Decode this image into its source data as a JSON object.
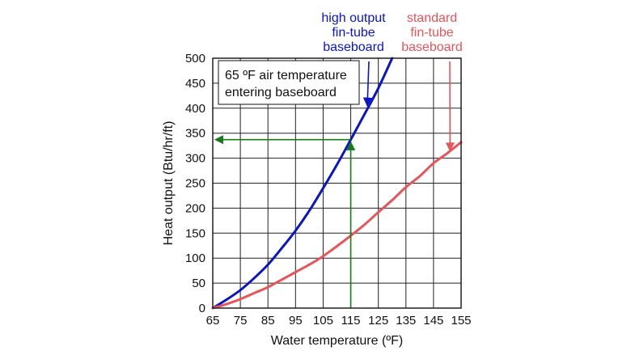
{
  "chart_data": {
    "type": "line",
    "title": "",
    "xlabel": "Water temperature (ºF)",
    "ylabel": "Heat output (Btu/hr/ft)",
    "xlim": [
      65,
      155
    ],
    "ylim": [
      0,
      500
    ],
    "x_ticks": [
      "65",
      "75",
      "85",
      "95",
      "105",
      "115",
      "125",
      "135",
      "145",
      "155"
    ],
    "y_ticks": [
      "0",
      "50",
      "100",
      "150",
      "200",
      "250",
      "300",
      "350",
      "400",
      "450",
      "500"
    ],
    "grid": true,
    "legend": "none",
    "colors": {
      "high_output": "#0a14c8",
      "standard": "#e8545a",
      "guide": "#1a7a1a"
    },
    "series": [
      {
        "key": "high_output",
        "x": [
          65,
          70,
          75,
          80,
          85,
          90,
          95,
          100,
          105,
          110,
          115,
          120,
          125,
          130
        ],
        "y": [
          0,
          17,
          36,
          60,
          87,
          120,
          155,
          195,
          240,
          287,
          337,
          388,
          440,
          500
        ]
      },
      {
        "key": "standard",
        "x": [
          65,
          70,
          75,
          80,
          85,
          90,
          95,
          100,
          105,
          110,
          115,
          120,
          125,
          130,
          135,
          140,
          145,
          150,
          155
        ],
        "y": [
          0,
          8,
          18,
          30,
          42,
          57,
          72,
          87,
          104,
          124,
          145,
          167,
          192,
          216,
          242,
          264,
          290,
          310,
          332
        ]
      }
    ],
    "guide_point": {
      "x": 115,
      "y": 337
    },
    "annotations": {
      "box_line1": "65 ºF air temperature",
      "box_line2": "entering baseboard",
      "high_label": [
        "high output",
        "fin-tube",
        "baseboard"
      ],
      "standard_label": [
        "standard",
        "fin-tube",
        "baseboard"
      ],
      "high_arrow_target": {
        "x": 121,
        "y": 405
      },
      "standard_arrow_target": {
        "x": 151,
        "y": 315
      }
    }
  }
}
